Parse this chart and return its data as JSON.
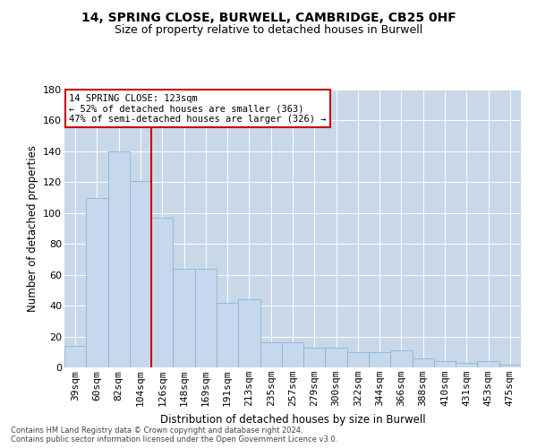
{
  "title_line1": "14, SPRING CLOSE, BURWELL, CAMBRIDGE, CB25 0HF",
  "title_line2": "Size of property relative to detached houses in Burwell",
  "xlabel": "Distribution of detached houses by size in Burwell",
  "ylabel": "Number of detached properties",
  "categories": [
    "39sqm",
    "60sqm",
    "82sqm",
    "104sqm",
    "126sqm",
    "148sqm",
    "169sqm",
    "191sqm",
    "213sqm",
    "235sqm",
    "257sqm",
    "279sqm",
    "300sqm",
    "322sqm",
    "344sqm",
    "366sqm",
    "388sqm",
    "410sqm",
    "431sqm",
    "453sqm",
    "475sqm"
  ],
  "values": [
    14,
    110,
    140,
    121,
    97,
    64,
    64,
    42,
    44,
    16,
    16,
    13,
    13,
    10,
    10,
    11,
    6,
    4,
    3,
    4,
    2
  ],
  "bar_color": "#c5d8ed",
  "bar_edge_color": "#7bafd4",
  "highlight_line_color": "#cc0000",
  "annotation_text": "14 SPRING CLOSE: 123sqm\n← 52% of detached houses are smaller (363)\n47% of semi-detached houses are larger (326) →",
  "annotation_box_color": "#ffffff",
  "annotation_box_edge_color": "#cc0000",
  "ylim": [
    0,
    180
  ],
  "yticks": [
    0,
    20,
    40,
    60,
    80,
    100,
    120,
    140,
    160,
    180
  ],
  "background_color": "#ffffff",
  "grid_color": "#c8d8e8",
  "footer_line1": "Contains HM Land Registry data © Crown copyright and database right 2024.",
  "footer_line2": "Contains public sector information licensed under the Open Government Licence v3.0."
}
